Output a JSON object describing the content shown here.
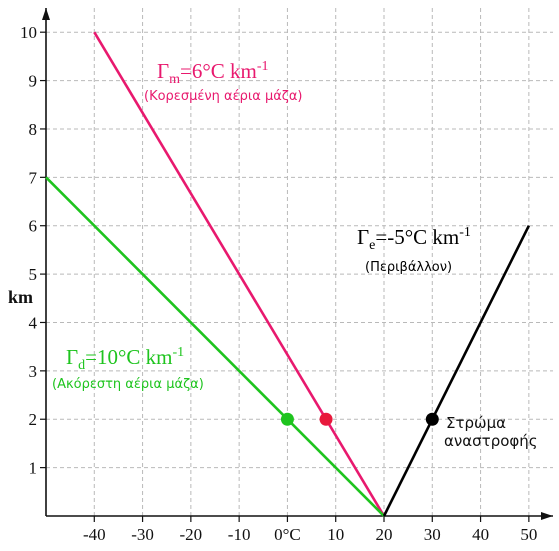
{
  "chart_data": {
    "type": "line",
    "x_ticks": [
      -40,
      -30,
      -20,
      -10,
      0,
      10,
      20,
      30,
      40,
      50
    ],
    "x_tick_labels": [
      "-40",
      "-30",
      "-20",
      "-10",
      "0°C",
      "10",
      "20",
      "30",
      "40",
      "50"
    ],
    "y_ticks": [
      1,
      2,
      3,
      4,
      5,
      6,
      7,
      8,
      9,
      10
    ],
    "y_tick_labels": [
      "1",
      "2",
      "3",
      "4",
      "5",
      "6",
      "7",
      "8",
      "9",
      "10"
    ],
    "xlim": [
      -50,
      55
    ],
    "ylim": [
      0,
      10.5
    ],
    "ylabel": "km",
    "grid": true,
    "series": [
      {
        "id": "moist",
        "label_main": "Γ",
        "label_sub": "m",
        "label_rest": "=6°C km",
        "label_sup": "-1",
        "label_note": "(Κορεσμένη αέρια μάζα)",
        "color": "#e8196e",
        "points": [
          [
            20,
            0
          ],
          [
            -40,
            10
          ]
        ]
      },
      {
        "id": "dry",
        "label_main": "Γ",
        "label_sub": "d",
        "label_rest": "=10°C km",
        "label_sup": "-1",
        "label_note": "(Ακόρεστη αέρια μάζα)",
        "color": "#1ec41e",
        "points": [
          [
            20,
            0
          ],
          [
            -50,
            7
          ]
        ]
      },
      {
        "id": "env",
        "label_main": "Γ",
        "label_sub": "e",
        "label_rest": "=-5°C km",
        "label_sup": "-1",
        "label_note": "(Περιβάλλον)",
        "color": "#000000",
        "points": [
          [
            20,
            0
          ],
          [
            50,
            6
          ]
        ]
      }
    ],
    "markers": [
      {
        "series": "dry",
        "x": 0,
        "y": 2,
        "color": "#1ec41e"
      },
      {
        "series": "moist",
        "x": 8,
        "y": 2,
        "color": "#e8193c"
      },
      {
        "series": "env",
        "x": 30,
        "y": 2,
        "color": "#000000"
      }
    ],
    "annotation": {
      "line1": "Στρώμα",
      "line2": "αναστροφής"
    }
  }
}
